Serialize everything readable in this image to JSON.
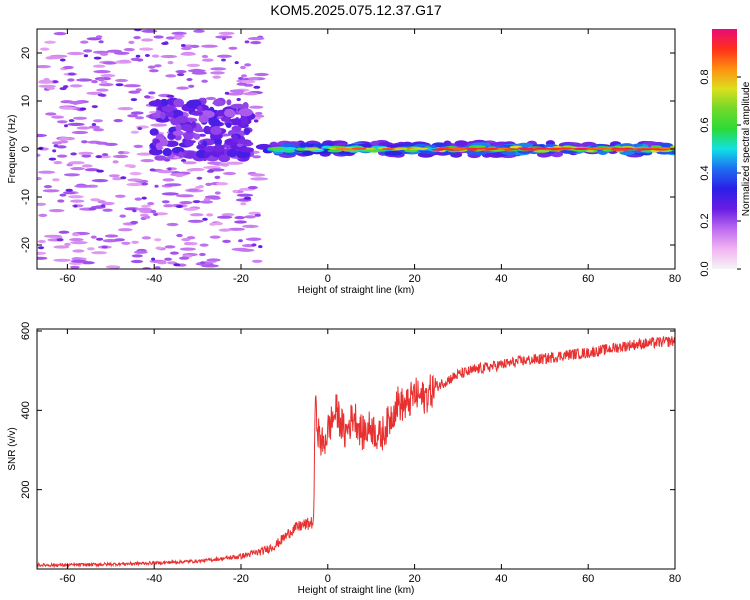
{
  "title": "KOM5.2025.075.12.37.G17",
  "colors": {
    "snr_line": "#e83030",
    "axis": "#000000",
    "plot_bg": "#ffffff"
  },
  "chart_data": [
    {
      "type": "heatmap",
      "xlabel": "Height of straight line (km)",
      "ylabel": "Frequency (Hz)",
      "xlim": [
        -67,
        80
      ],
      "ylim": [
        -25,
        25
      ],
      "xticks": [
        -60,
        -40,
        -20,
        0,
        20,
        40,
        60,
        80
      ],
      "yticks": [
        -20,
        -10,
        0,
        10,
        20
      ],
      "colorbar": {
        "label": "Normalized spectral amplitude",
        "range": [
          0,
          1
        ],
        "ticks": [
          "0.0",
          "0.2",
          "0.4",
          "0.6",
          "0.8"
        ],
        "tick_values": [
          0,
          0.2,
          0.4,
          0.6,
          0.8
        ],
        "colormap": [
          "#f4f4f4",
          "#f3b4f2",
          "#bc6bf0",
          "#6a1de4",
          "#2a1ee6",
          "#1e6cf2",
          "#11e0e4",
          "#2bdb37",
          "#71d82a",
          "#dbe01e",
          "#ff9010",
          "#ff2f1b",
          "#ea0a78"
        ]
      },
      "grid": false,
      "description_of_structure": "scattered low-amplitude noise below 0 km, dense cluster near -38 to -20 km around 0 to 10 Hz, narrow high-amplitude band near 0 Hz from -15 km to 80 km"
    },
    {
      "type": "line",
      "xlabel": "Height of straight line (km)",
      "ylabel": "SNR (v/v)",
      "xlim": [
        -67,
        80
      ],
      "ylim": [
        0,
        605
      ],
      "xticks": [
        -60,
        -40,
        -20,
        0,
        20,
        40,
        60,
        80
      ],
      "yticks": [
        200,
        400,
        600
      ],
      "grid": false,
      "series": [
        {
          "x": [
            -67,
            -60,
            -50,
            -40,
            -30,
            -25,
            -20,
            -15,
            -12,
            -10,
            -8,
            -6,
            -5,
            -4,
            -3.2,
            -3,
            -2.5,
            -2,
            -1,
            0,
            2,
            4,
            6,
            8,
            10,
            12,
            14,
            16,
            18,
            20,
            22,
            25,
            30,
            35,
            40,
            45,
            50,
            55,
            60,
            65,
            70,
            75,
            80
          ],
          "values": [
            10,
            10,
            12,
            15,
            20,
            25,
            32,
            45,
            60,
            80,
            100,
            110,
            112,
            115,
            120,
            410,
            380,
            330,
            310,
            350,
            400,
            340,
            390,
            340,
            360,
            330,
            370,
            420,
            410,
            440,
            430,
            460,
            490,
            505,
            515,
            525,
            530,
            540,
            545,
            555,
            565,
            570,
            575
          ]
        }
      ]
    }
  ]
}
